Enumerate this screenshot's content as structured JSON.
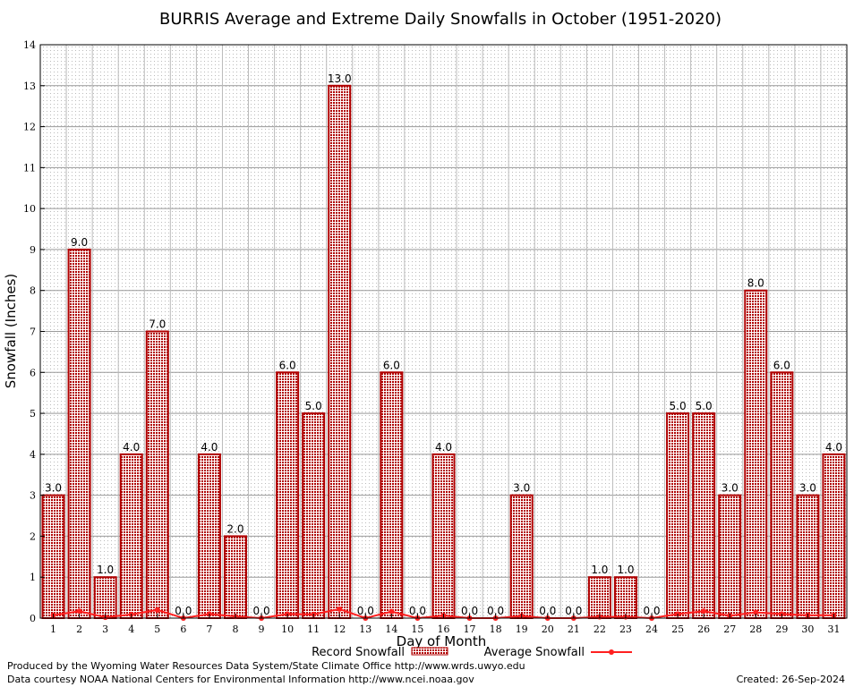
{
  "chart_data": {
    "type": "bar",
    "title": "BURRIS Average and Extreme Daily Snowfalls in October (1951-2020)",
    "xlabel": "Day of Month",
    "ylabel": "Snowfall (Inches)",
    "ylim": [
      0,
      14
    ],
    "yticks": [
      "0",
      "1",
      "2",
      "3",
      "4",
      "5",
      "6",
      "7",
      "8",
      "9",
      "10",
      "11",
      "12",
      "13",
      "14"
    ],
    "categories": [
      "1",
      "2",
      "3",
      "4",
      "5",
      "6",
      "7",
      "8",
      "9",
      "10",
      "11",
      "12",
      "13",
      "14",
      "15",
      "16",
      "17",
      "18",
      "19",
      "20",
      "21",
      "22",
      "23",
      "24",
      "25",
      "26",
      "27",
      "28",
      "29",
      "30",
      "31"
    ],
    "series": [
      {
        "name": "Record Snowfall",
        "type": "bar",
        "color": "#cc0000",
        "values": [
          3,
          9,
          1,
          4,
          7,
          0,
          4,
          2,
          0,
          6,
          5,
          13,
          0,
          6,
          0,
          4,
          0,
          0,
          3,
          0,
          0,
          1,
          1,
          0,
          5,
          5,
          3,
          8,
          6,
          3,
          4
        ],
        "labels": [
          "3.0",
          "9.0",
          "1.0",
          "4.0",
          "7.0",
          "0.0",
          "4.0",
          "2.0",
          "0.0",
          "6.0",
          "5.0",
          "13.0",
          "0.0",
          "6.0",
          "0.0",
          "4.0",
          "0.0",
          "0.0",
          "3.0",
          "0.0",
          "0.0",
          "1.0",
          "1.0",
          "0.0",
          "5.0",
          "5.0",
          "3.0",
          "8.0",
          "6.0",
          "3.0",
          "4.0"
        ]
      },
      {
        "name": "Average Snowfall",
        "type": "line",
        "color": "#ff2020",
        "values": [
          0.07,
          0.17,
          0.02,
          0.09,
          0.2,
          0,
          0.1,
          0.04,
          0,
          0.1,
          0.09,
          0.22,
          0,
          0.16,
          0,
          0.06,
          0,
          0,
          0.05,
          0,
          0,
          0.03,
          0.03,
          0,
          0.1,
          0.17,
          0.06,
          0.14,
          0.1,
          0.07,
          0.07
        ]
      }
    ],
    "legend": "bottom-center",
    "grid": true
  },
  "footer": {
    "produced": "Produced by the Wyoming Water Resources Data System/State Climate Office http://www.wrds.uwyo.edu",
    "courtesy": "Data courtesy NOAA National Centers for Environmental Information http://www.ncei.noaa.gov",
    "created": "Created: 26-Sep-2024"
  }
}
